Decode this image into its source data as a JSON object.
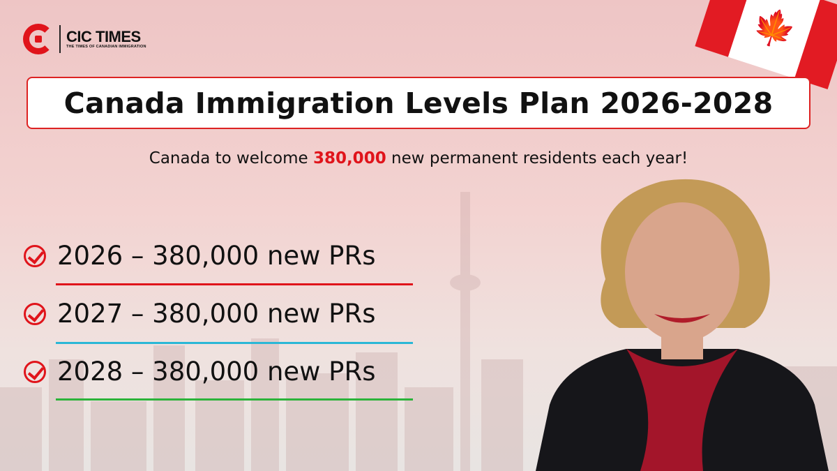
{
  "brand": {
    "name": "CIC TIMES",
    "tagline": "THE TIMES OF CANADIAN IMMIGRATION"
  },
  "title": "Canada Immigration Levels Plan 2026-2028",
  "subtitle": {
    "before": "Canada to welcome ",
    "highlight": "380,000",
    "after": " new permanent residents each year!"
  },
  "items": [
    {
      "text": "2026 – 380,000 new PRs",
      "underline_color": "#e0141b"
    },
    {
      "text": "2027 – 380,000 new PRs",
      "underline_color": "#2bb7d6"
    },
    {
      "text": "2028 – 380,000 new PRs",
      "underline_color": "#2bb33a"
    }
  ],
  "colors": {
    "accent": "#e0141b"
  },
  "icons": [
    "check-circle-icon",
    "canada-flag-icon",
    "maple-leaf-icon"
  ]
}
